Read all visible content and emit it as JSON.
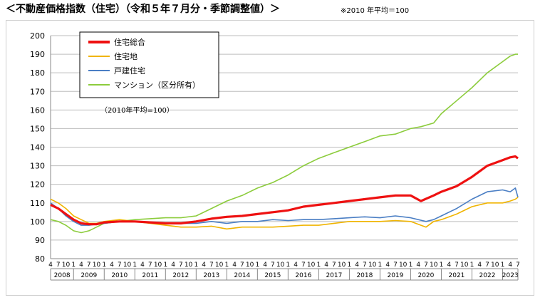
{
  "header": {
    "title": "＜不動産価格指数（住宅）（令和５年７月分・季節調整値）＞",
    "note": "※2010 年平均＝100"
  },
  "chart_data": {
    "type": "line",
    "title": "",
    "xlabel": "",
    "ylabel": "",
    "ylim": [
      80,
      200
    ],
    "yticks": [
      80,
      90,
      100,
      110,
      120,
      130,
      140,
      150,
      160,
      170,
      180,
      190,
      200
    ],
    "grid": "horizontal",
    "legend_position": "top-left",
    "legend_note": "（2010年平均=100）",
    "x_start": "2008-04",
    "x_end": "2023-07",
    "month_tick_labels": [
      "4",
      "7",
      "10",
      "1"
    ],
    "years": [
      "2008",
      "2009",
      "2010",
      "2011",
      "2012",
      "2013",
      "2014",
      "2015",
      "2016",
      "2017",
      "2018",
      "2019",
      "2020",
      "2021",
      "2022",
      "2023"
    ],
    "series": [
      {
        "name": "住宅総合",
        "color": "#ee1111",
        "points": [
          [
            "2008-04",
            109
          ],
          [
            "2008-07",
            107
          ],
          [
            "2008-10",
            104
          ],
          [
            "2009-01",
            101
          ],
          [
            "2009-04",
            99
          ],
          [
            "2009-07",
            98.5
          ],
          [
            "2009-10",
            98.5
          ],
          [
            "2010-01",
            99.5
          ],
          [
            "2010-07",
            100
          ],
          [
            "2011-01",
            100
          ],
          [
            "2011-07",
            99.5
          ],
          [
            "2012-01",
            99
          ],
          [
            "2012-07",
            99
          ],
          [
            "2013-01",
            100
          ],
          [
            "2013-07",
            101.5
          ],
          [
            "2014-01",
            102.5
          ],
          [
            "2014-07",
            103
          ],
          [
            "2015-01",
            104
          ],
          [
            "2015-07",
            105
          ],
          [
            "2016-01",
            106
          ],
          [
            "2016-07",
            108
          ],
          [
            "2017-01",
            109
          ],
          [
            "2017-07",
            110
          ],
          [
            "2018-01",
            111
          ],
          [
            "2018-07",
            112
          ],
          [
            "2019-01",
            113
          ],
          [
            "2019-07",
            114
          ],
          [
            "2020-01",
            114
          ],
          [
            "2020-05",
            111
          ],
          [
            "2020-10",
            114
          ],
          [
            "2021-01",
            116
          ],
          [
            "2021-07",
            119
          ],
          [
            "2022-01",
            124
          ],
          [
            "2022-07",
            130
          ],
          [
            "2023-01",
            133
          ],
          [
            "2023-04",
            134.5
          ],
          [
            "2023-06",
            135
          ],
          [
            "2023-07",
            134
          ]
        ]
      },
      {
        "name": "住宅地",
        "color": "#f0b400",
        "points": [
          [
            "2008-04",
            112
          ],
          [
            "2008-07",
            110
          ],
          [
            "2008-10",
            107
          ],
          [
            "2009-01",
            103
          ],
          [
            "2009-04",
            101
          ],
          [
            "2009-07",
            99
          ],
          [
            "2009-10",
            99
          ],
          [
            "2010-01",
            100
          ],
          [
            "2010-07",
            101
          ],
          [
            "2011-01",
            100
          ],
          [
            "2011-07",
            99
          ],
          [
            "2012-01",
            98
          ],
          [
            "2012-07",
            97
          ],
          [
            "2013-01",
            97
          ],
          [
            "2013-07",
            97.5
          ],
          [
            "2014-01",
            96
          ],
          [
            "2014-07",
            97
          ],
          [
            "2015-01",
            97
          ],
          [
            "2015-07",
            97
          ],
          [
            "2016-01",
            97.5
          ],
          [
            "2016-07",
            98
          ],
          [
            "2017-01",
            98
          ],
          [
            "2017-07",
            99
          ],
          [
            "2018-01",
            100
          ],
          [
            "2018-07",
            100
          ],
          [
            "2019-01",
            100
          ],
          [
            "2019-07",
            100.5
          ],
          [
            "2020-01",
            100
          ],
          [
            "2020-07",
            97
          ],
          [
            "2020-10",
            100
          ],
          [
            "2021-01",
            101
          ],
          [
            "2021-07",
            104
          ],
          [
            "2022-01",
            108
          ],
          [
            "2022-07",
            110
          ],
          [
            "2023-01",
            110
          ],
          [
            "2023-04",
            111
          ],
          [
            "2023-06",
            112
          ],
          [
            "2023-07",
            113
          ]
        ]
      },
      {
        "name": "戸建住宅",
        "color": "#4a7ec4",
        "points": [
          [
            "2008-04",
            110
          ],
          [
            "2008-07",
            107
          ],
          [
            "2008-10",
            103
          ],
          [
            "2009-01",
            100
          ],
          [
            "2009-04",
            98
          ],
          [
            "2009-07",
            98
          ],
          [
            "2009-10",
            98.5
          ],
          [
            "2010-01",
            99
          ],
          [
            "2010-07",
            100
          ],
          [
            "2011-01",
            100
          ],
          [
            "2011-07",
            99.5
          ],
          [
            "2012-01",
            99
          ],
          [
            "2012-07",
            99
          ],
          [
            "2013-01",
            99
          ],
          [
            "2013-07",
            100
          ],
          [
            "2014-01",
            99
          ],
          [
            "2014-07",
            100
          ],
          [
            "2015-01",
            100
          ],
          [
            "2015-07",
            101
          ],
          [
            "2016-01",
            100.5
          ],
          [
            "2016-07",
            101
          ],
          [
            "2017-01",
            101
          ],
          [
            "2017-07",
            101.5
          ],
          [
            "2018-01",
            102
          ],
          [
            "2018-07",
            102.5
          ],
          [
            "2019-01",
            102
          ],
          [
            "2019-07",
            103
          ],
          [
            "2020-01",
            102
          ],
          [
            "2020-07",
            100
          ],
          [
            "2020-10",
            101
          ],
          [
            "2021-01",
            103
          ],
          [
            "2021-07",
            107
          ],
          [
            "2022-01",
            112
          ],
          [
            "2022-07",
            116
          ],
          [
            "2023-01",
            117
          ],
          [
            "2023-04",
            116
          ],
          [
            "2023-06",
            118
          ],
          [
            "2023-07",
            113
          ]
        ]
      },
      {
        "name": "マンション（区分所有）",
        "color": "#8ccc3c",
        "points": [
          [
            "2008-04",
            101
          ],
          [
            "2008-07",
            100
          ],
          [
            "2008-10",
            98
          ],
          [
            "2009-01",
            95
          ],
          [
            "2009-04",
            94
          ],
          [
            "2009-07",
            95
          ],
          [
            "2009-10",
            97
          ],
          [
            "2010-01",
            99
          ],
          [
            "2010-07",
            100
          ],
          [
            "2011-01",
            101
          ],
          [
            "2011-07",
            101.5
          ],
          [
            "2012-01",
            102
          ],
          [
            "2012-07",
            102
          ],
          [
            "2013-01",
            103
          ],
          [
            "2013-07",
            107
          ],
          [
            "2014-01",
            111
          ],
          [
            "2014-07",
            114
          ],
          [
            "2015-01",
            118
          ],
          [
            "2015-07",
            121
          ],
          [
            "2016-01",
            125
          ],
          [
            "2016-07",
            130
          ],
          [
            "2017-01",
            134
          ],
          [
            "2017-07",
            137
          ],
          [
            "2018-01",
            140
          ],
          [
            "2018-07",
            143
          ],
          [
            "2019-01",
            146
          ],
          [
            "2019-07",
            147
          ],
          [
            "2020-01",
            150
          ],
          [
            "2020-05",
            151
          ],
          [
            "2020-10",
            153
          ],
          [
            "2021-01",
            158
          ],
          [
            "2021-07",
            165
          ],
          [
            "2022-01",
            172
          ],
          [
            "2022-07",
            180
          ],
          [
            "2023-01",
            186
          ],
          [
            "2023-04",
            189
          ],
          [
            "2023-06",
            190
          ],
          [
            "2023-07",
            190
          ]
        ]
      }
    ]
  }
}
